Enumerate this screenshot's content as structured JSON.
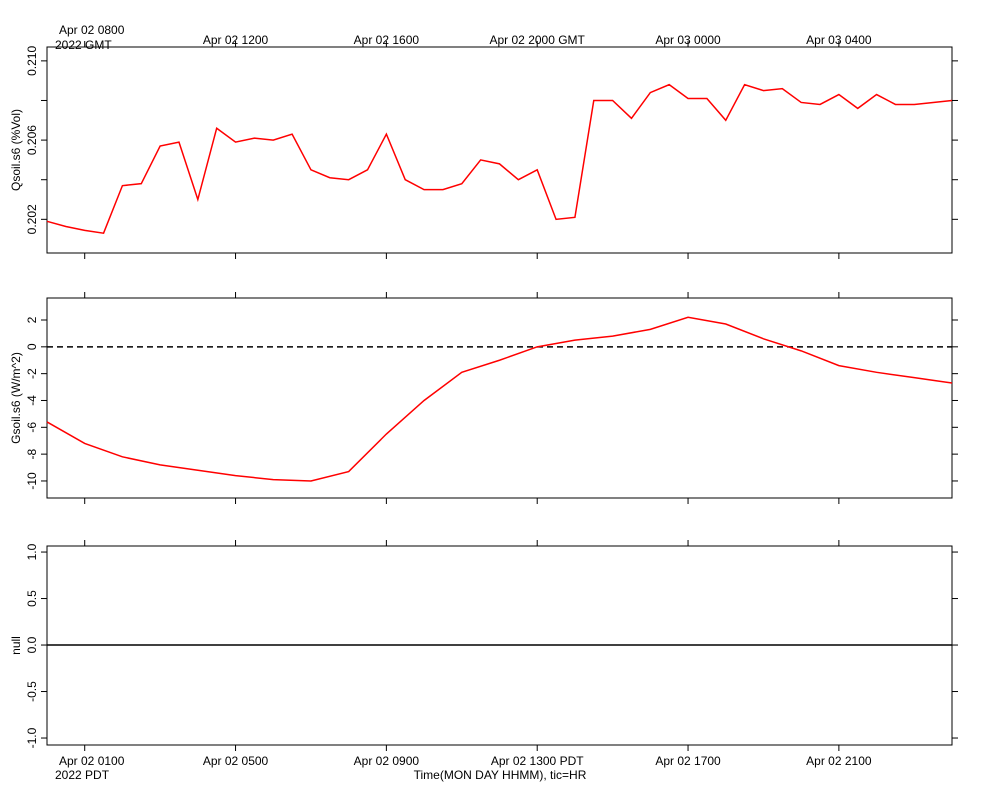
{
  "chart_data": [
    {
      "type": "line",
      "ylabel": "Qsoil.s6 (%Vol)",
      "color": "#ff0000",
      "x": [
        0,
        0.5,
        1,
        1.5,
        2,
        2.5,
        3,
        3.5,
        4,
        4.5,
        5,
        5.5,
        6,
        6.5,
        7,
        7.5,
        8,
        8.5,
        9,
        9.5,
        10,
        10.5,
        11,
        11.5,
        12,
        12.5,
        13,
        13.5,
        14,
        14.5,
        15,
        15.5,
        16,
        16.5,
        17,
        17.5,
        18,
        18.5,
        19,
        19.5,
        20,
        20.5,
        21,
        21.5,
        22,
        22.5,
        23,
        23.5,
        24
      ],
      "values": [
        0.2019,
        0.20164,
        0.20144,
        0.2013,
        0.2037,
        0.2038,
        0.2057,
        0.2059,
        0.203,
        0.2066,
        0.2059,
        0.2061,
        0.206,
        0.2063,
        0.2045,
        0.2041,
        0.204,
        0.2045,
        0.2063,
        0.204,
        0.2035,
        0.2035,
        0.2038,
        0.205,
        0.2048,
        0.204,
        0.2045,
        0.202,
        0.2021,
        0.208,
        0.208,
        0.2071,
        0.2084,
        0.2088,
        0.2081,
        0.2081,
        0.207,
        0.2088,
        0.2085,
        0.2086,
        0.2079,
        0.2078,
        0.2083,
        0.2076,
        0.2083,
        0.2078,
        0.2078,
        0.2079,
        0.208
      ],
      "xlim": [
        0,
        24
      ],
      "ylim": [
        0.2003,
        0.2107
      ],
      "yticks": [
        {
          "value": 0.202,
          "label": "0.202"
        },
        {
          "value": 0.206,
          "label": "0.206"
        },
        {
          "value": 0.21,
          "label": "0.210"
        }
      ],
      "yminor_ticks": [
        0.204,
        0.208
      ],
      "x2ticks": [
        {
          "value": 1,
          "label": "Apr 02 0800"
        },
        {
          "value": 5,
          "label": "Apr 02 1200"
        },
        {
          "value": 9,
          "label": "Apr 02 1600"
        },
        {
          "value": 13,
          "label": "Apr 02 2000 GMT"
        },
        {
          "value": 17,
          "label": "Apr 03 0000"
        },
        {
          "value": 21,
          "label": "Apr 03 0400"
        }
      ],
      "x2_note": "2022 GMT"
    },
    {
      "type": "line",
      "ylabel": "Gsoil.s6 (W/m^2)",
      "color": "#ff0000",
      "x": [
        0,
        1,
        2,
        3,
        4,
        5,
        6,
        7,
        8,
        9,
        10,
        11,
        12,
        13,
        14,
        15,
        16,
        17,
        18,
        19,
        20,
        21,
        22,
        23,
        24
      ],
      "values": [
        -5.6,
        -7.2,
        -8.2,
        -8.8,
        -9.2,
        -9.6,
        -9.9,
        -10.0,
        -9.3,
        -6.5,
        -4.0,
        -1.9,
        -1.0,
        0.0,
        0.5,
        0.8,
        1.3,
        2.2,
        1.7,
        0.6,
        -0.3,
        -1.4,
        -1.9,
        -2.3,
        -2.7
      ],
      "xlim": [
        0,
        24
      ],
      "ylim": [
        -11.27,
        3.64
      ],
      "yticks": [
        -10,
        -8,
        -6,
        -4,
        -2,
        0,
        2
      ],
      "reference_line": 0,
      "reference_dashed": true
    },
    {
      "type": "line",
      "ylabel": "null",
      "x": [],
      "values": [],
      "xlim": [
        0,
        24
      ],
      "ylim": [
        -1.075,
        1.065
      ],
      "yticks": [
        {
          "value": -1,
          "label": "-1.0"
        },
        {
          "value": -0.5,
          "label": "-0.5"
        },
        {
          "value": 0,
          "label": "0.0"
        },
        {
          "value": 0.5,
          "label": "0.5"
        },
        {
          "value": 1,
          "label": "1.0"
        }
      ],
      "reference_line": 0,
      "reference_dashed": false,
      "xticks": [
        {
          "value": 1,
          "label": "Apr 02 0100"
        },
        {
          "value": 5,
          "label": "Apr 02 0500"
        },
        {
          "value": 9,
          "label": "Apr 02 0900"
        },
        {
          "value": 13,
          "label": "Apr 02 1300 PDT"
        },
        {
          "value": 17,
          "label": "Apr 02 1700"
        },
        {
          "value": 21,
          "label": "Apr 02 2100"
        }
      ],
      "x_note": "2022 PDT",
      "xlabel": "Time(MON DAY HHMM), tic=HR"
    }
  ]
}
